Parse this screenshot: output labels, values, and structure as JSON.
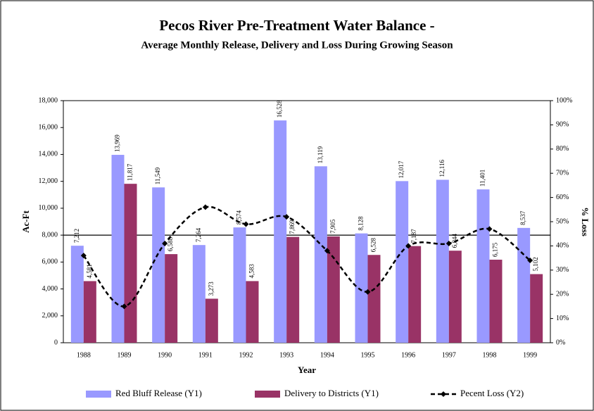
{
  "chart_data": {
    "type": "bar",
    "title": "Pecos River Pre-Treatment Water Balance  -",
    "subtitle": "Average Monthly Release, Delivery and Loss During Growing Season",
    "x_label": "Year",
    "y_label": "Ac-Ft",
    "y2_label": "% Loss",
    "categories": [
      "1988",
      "1989",
      "1990",
      "1991",
      "1992",
      "1993",
      "1994",
      "1995",
      "1996",
      "1997",
      "1998",
      "1999"
    ],
    "series": [
      {
        "name": "Red Bluff Release (Y1)",
        "type": "bar",
        "color": "#9999ff",
        "values": [
          7212,
          13969,
          11549,
          7264,
          8574,
          16528,
          13119,
          8128,
          12017,
          12116,
          11401,
          8537
        ],
        "value_labels": [
          "7,212",
          "13,969",
          "11,549",
          "7,264",
          "8,574",
          "16,528",
          "13,119",
          "8,128",
          "12,017",
          "12,116",
          "11,401",
          "8,537"
        ]
      },
      {
        "name": "Delivery to Districts (Y1)",
        "type": "bar",
        "color": "#993366",
        "values": [
          4581,
          11817,
          6588,
          3273,
          4583,
          7869,
          7905,
          6528,
          7187,
          6844,
          6175,
          5102
        ],
        "value_labels": [
          "4,581",
          "11,817",
          "6,588",
          "3,273",
          "4,583",
          "7,869",
          "7,905",
          "6,528",
          "7,187",
          "6,844",
          "6,175",
          "5,102"
        ]
      },
      {
        "name": "Pecent Loss (Y2)",
        "type": "line",
        "axis": "y2",
        "color": "#000000",
        "values": [
          36,
          15,
          41,
          56,
          49,
          52,
          38,
          21,
          40,
          41,
          47,
          34
        ]
      }
    ],
    "ylim": [
      0,
      18000
    ],
    "yticks": [
      0,
      {
        "value": 2000,
        "label": "2,000"
      },
      {
        "value": 4000,
        "label": "4,000"
      },
      {
        "value": 6000,
        "label": "6,000"
      },
      {
        "value": 8000,
        "label": "8,000"
      },
      {
        "value": 10000,
        "label": "10,000"
      },
      {
        "value": 12000,
        "label": "12,000"
      },
      {
        "value": 14000,
        "label": "14,000"
      },
      {
        "value": 16000,
        "label": "16,000"
      },
      {
        "value": 18000,
        "label": "18,000"
      }
    ],
    "y2lim": [
      0,
      100
    ],
    "y2ticks": [
      {
        "value": 0,
        "label": "0%"
      },
      {
        "value": 10,
        "label": "10%"
      },
      {
        "value": 20,
        "label": "20%"
      },
      {
        "value": 30,
        "label": "30%"
      },
      {
        "value": 40,
        "label": "40%"
      },
      {
        "value": 50,
        "label": "50%"
      },
      {
        "value": 60,
        "label": "60%"
      },
      {
        "value": 70,
        "label": "70%"
      },
      {
        "value": 80,
        "label": "80%"
      },
      {
        "value": 90,
        "label": "90%"
      },
      {
        "value": 100,
        "label": "100%"
      }
    ],
    "reference_line": 8000,
    "grid": false,
    "legend": "bottom"
  }
}
